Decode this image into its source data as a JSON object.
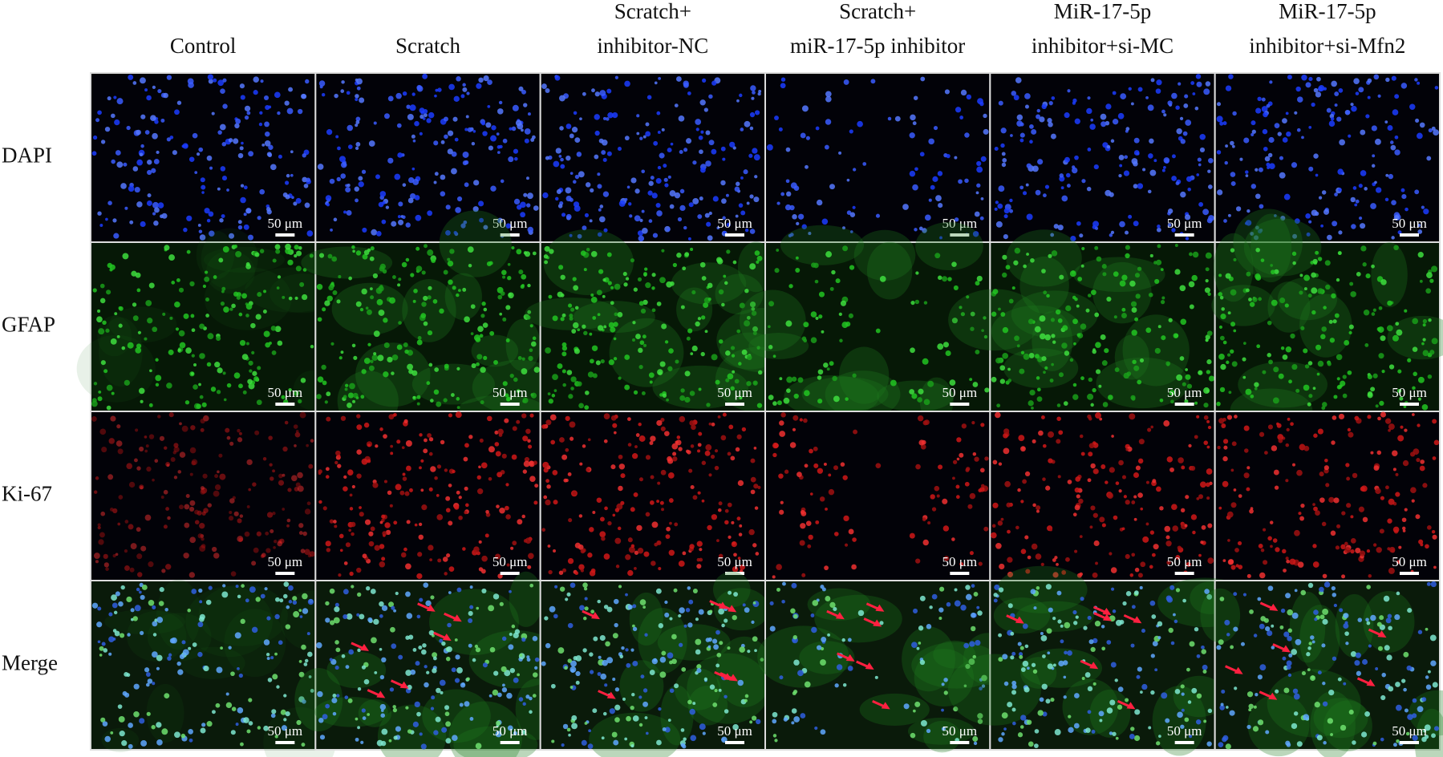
{
  "columns": [
    {
      "lines": [
        "Control"
      ]
    },
    {
      "lines": [
        "Scratch"
      ]
    },
    {
      "lines": [
        "Scratch+",
        "inhibitor-NC"
      ]
    },
    {
      "lines": [
        "Scratch+",
        "miR-17-5p inhibitor"
      ]
    },
    {
      "lines": [
        "MiR-17-5p",
        "inhibitor+si-MC"
      ]
    },
    {
      "lines": [
        "MiR-17-5p",
        "inhibitor+si-Mfn2"
      ]
    }
  ],
  "rows": [
    "DAPI",
    "GFAP",
    "Ki-67",
    "Merge"
  ],
  "scale_bar": "50 μm"
}
